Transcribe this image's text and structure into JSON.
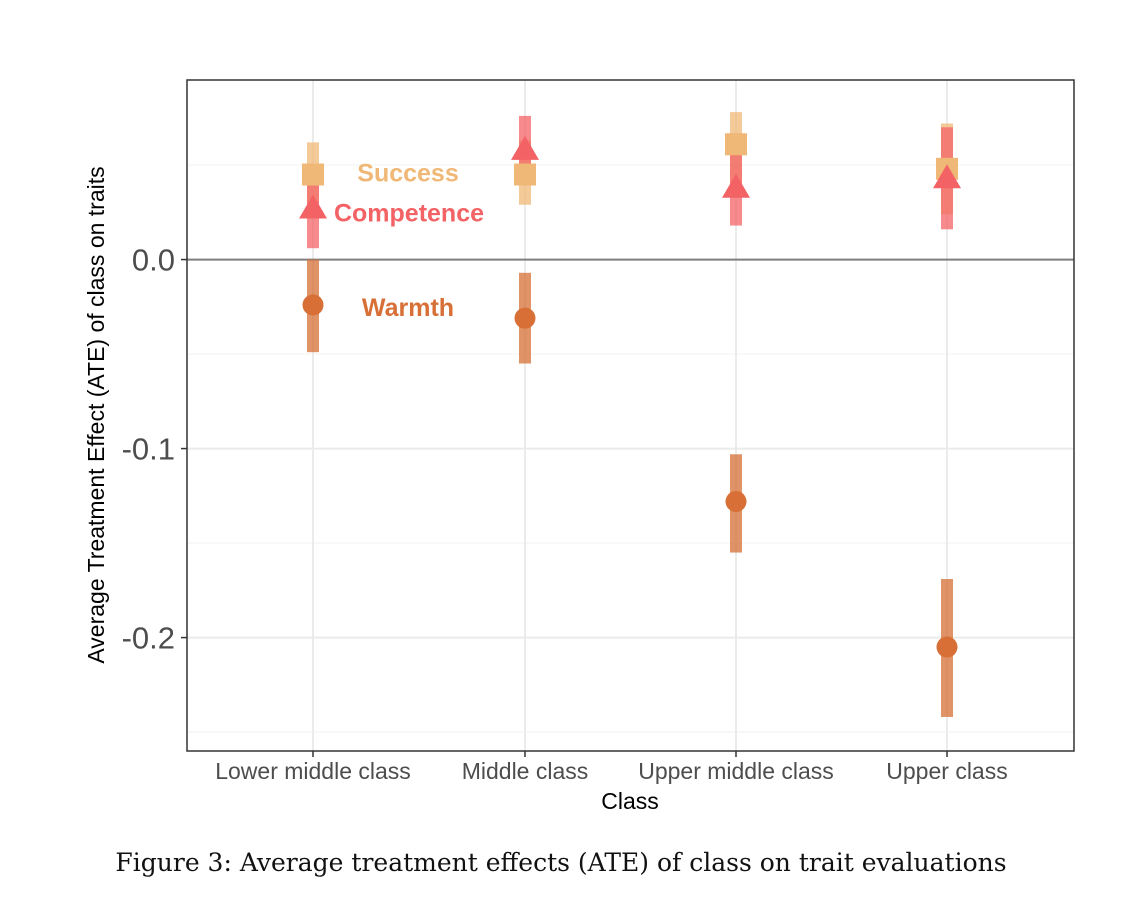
{
  "caption": "Figure 3: Average treatment effects (ATE) of class on trait evaluations",
  "chart_data": {
    "type": "scatter",
    "xlabel": "Class",
    "ylabel": "Average Treatment Effect (ATE) of class on traits",
    "categories": [
      "Lower middle class",
      "Middle class",
      "Upper middle class",
      "Upper class"
    ],
    "ylim": [
      -0.26,
      0.095
    ],
    "yticks": [
      0.0,
      -0.1,
      -0.2
    ],
    "ytick_labels": [
      "0.0",
      "-0.1",
      "-0.2"
    ],
    "grid": true,
    "reference_line": 0.0,
    "series": [
      {
        "name": "Success",
        "marker": "square",
        "color": "#F0B877",
        "values": [
          0.045,
          0.045,
          0.061,
          0.048
        ],
        "lower": [
          0.023,
          0.029,
          0.04,
          0.024
        ],
        "upper": [
          0.062,
          0.063,
          0.078,
          0.072
        ]
      },
      {
        "name": "Competence",
        "marker": "triangle",
        "color": "#F36366",
        "values": [
          0.027,
          0.058,
          0.038,
          0.043
        ],
        "lower": [
          0.006,
          0.041,
          0.018,
          0.016
        ],
        "upper": [
          0.045,
          0.076,
          0.058,
          0.07
        ]
      },
      {
        "name": "Warmth",
        "marker": "circle",
        "color": "#D76F36",
        "values": [
          -0.024,
          -0.031,
          -0.128,
          -0.205
        ],
        "lower": [
          -0.049,
          -0.055,
          -0.155,
          -0.242
        ],
        "upper": [
          0.0,
          -0.007,
          -0.103,
          -0.169
        ]
      }
    ],
    "annotations": [
      {
        "text": "Success",
        "series": "Success",
        "category": "Lower middle class",
        "y": 0.046
      },
      {
        "text": "Competence",
        "series": "Competence",
        "category": "Lower middle class",
        "y": 0.025
      },
      {
        "text": "Warmth",
        "series": "Warmth",
        "category": "Lower middle class",
        "y": -0.025
      }
    ]
  }
}
